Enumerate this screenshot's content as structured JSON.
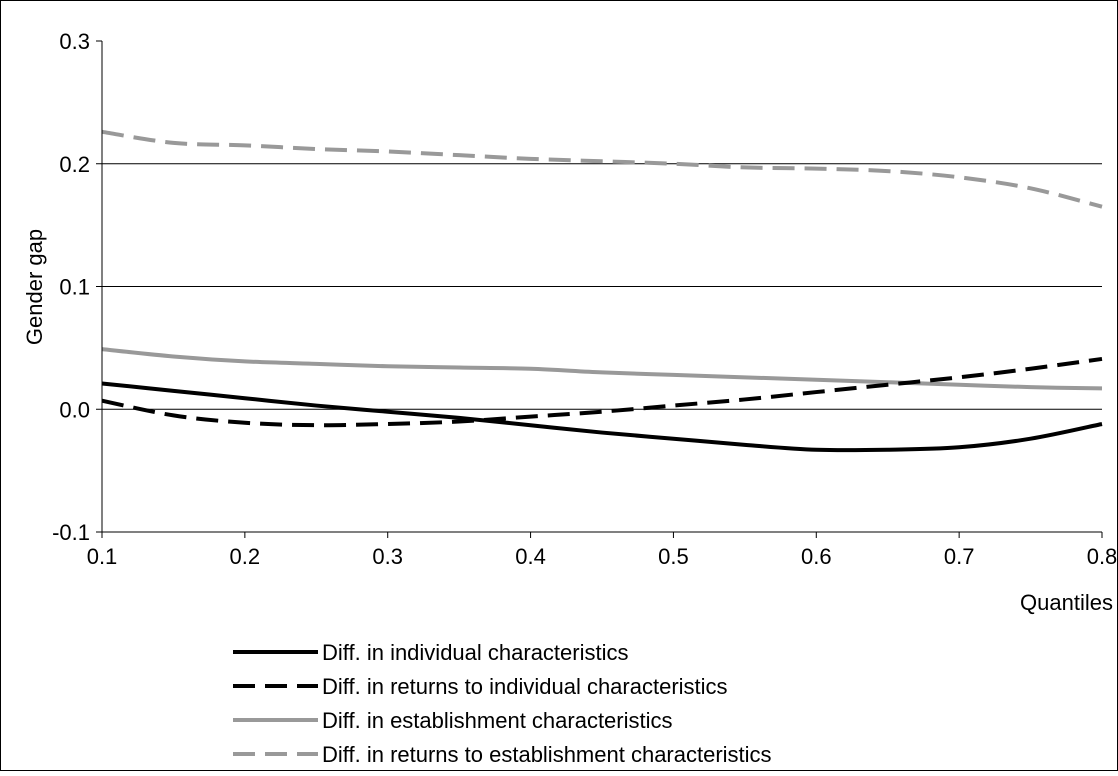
{
  "chart_data": {
    "type": "line",
    "title": "",
    "xlabel": "Quantiles",
    "ylabel": "Gender gap",
    "xlim": [
      0.1,
      0.8
    ],
    "ylim": [
      -0.1,
      0.3
    ],
    "xticks": [
      "0.1",
      "0.2",
      "0.3",
      "0.4",
      "0.5",
      "0.6",
      "0.7",
      "0.8"
    ],
    "yticks": [
      "-0.1",
      "0.0",
      "0.1",
      "0.2",
      "0.3"
    ],
    "grid": "horizontal",
    "legend_position": "bottom",
    "series": [
      {
        "name": "Diff. in individual characteristics",
        "color": "#000000",
        "dash": "solid",
        "x": [
          0.1,
          0.15,
          0.2,
          0.25,
          0.3,
          0.35,
          0.4,
          0.45,
          0.5,
          0.55,
          0.6,
          0.65,
          0.7,
          0.75,
          0.8
        ],
        "y": [
          0.021,
          0.015,
          0.009,
          0.003,
          -0.002,
          -0.007,
          -0.013,
          -0.019,
          -0.024,
          -0.029,
          -0.033,
          -0.033,
          -0.031,
          -0.024,
          -0.012
        ]
      },
      {
        "name": "Diff. in returns to individual characteristics",
        "color": "#000000",
        "dash": "dashed",
        "x": [
          0.1,
          0.15,
          0.2,
          0.25,
          0.3,
          0.35,
          0.4,
          0.45,
          0.5,
          0.55,
          0.6,
          0.65,
          0.7,
          0.75,
          0.8
        ],
        "y": [
          0.007,
          -0.005,
          -0.011,
          -0.013,
          -0.012,
          -0.01,
          -0.006,
          -0.002,
          0.003,
          0.008,
          0.014,
          0.02,
          0.026,
          0.033,
          0.041
        ]
      },
      {
        "name": "Diff. in establishment characteristics",
        "color": "#999999",
        "dash": "solid",
        "x": [
          0.1,
          0.15,
          0.2,
          0.25,
          0.3,
          0.35,
          0.4,
          0.45,
          0.5,
          0.55,
          0.6,
          0.65,
          0.7,
          0.75,
          0.8
        ],
        "y": [
          0.049,
          0.043,
          0.039,
          0.037,
          0.035,
          0.034,
          0.033,
          0.03,
          0.028,
          0.026,
          0.024,
          0.022,
          0.02,
          0.018,
          0.017
        ]
      },
      {
        "name": "Diff. in returns to establishment characteristics",
        "color": "#999999",
        "dash": "dashed",
        "x": [
          0.1,
          0.15,
          0.2,
          0.25,
          0.3,
          0.35,
          0.4,
          0.45,
          0.5,
          0.55,
          0.6,
          0.65,
          0.7,
          0.75,
          0.8
        ],
        "y": [
          0.226,
          0.217,
          0.215,
          0.212,
          0.21,
          0.207,
          0.204,
          0.202,
          0.2,
          0.197,
          0.196,
          0.194,
          0.189,
          0.18,
          0.165
        ]
      }
    ]
  }
}
